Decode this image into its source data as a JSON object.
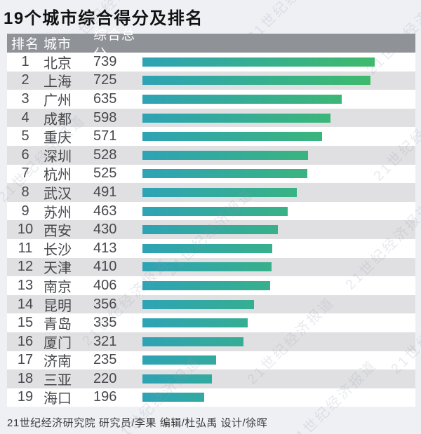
{
  "title": "19个城市综合得分及排名",
  "table": {
    "headers": {
      "rank": "排名",
      "city": "城市",
      "score": "综合总分"
    }
  },
  "chart_data": {
    "type": "bar",
    "orientation": "horizontal",
    "title": "19个城市综合得分及排名",
    "categories": [
      "北京",
      "上海",
      "广州",
      "成都",
      "重庆",
      "深圳",
      "杭州",
      "武汉",
      "苏州",
      "西安",
      "长沙",
      "天津",
      "南京",
      "昆明",
      "青岛",
      "厦门",
      "济南",
      "三亚",
      "海口"
    ],
    "ranks": [
      1,
      2,
      3,
      4,
      5,
      6,
      7,
      8,
      9,
      10,
      11,
      12,
      13,
      14,
      15,
      16,
      17,
      18,
      19
    ],
    "values": [
      739,
      725,
      635,
      598,
      571,
      528,
      525,
      491,
      463,
      430,
      413,
      410,
      406,
      356,
      335,
      321,
      235,
      220,
      196
    ],
    "xlim": [
      0,
      739
    ],
    "grid": false,
    "legend": false,
    "bar_gradient": [
      "#2ea3b5",
      "#3fba6b"
    ]
  },
  "footer": {
    "text": "21世纪经济研究院 研究员/李果  编辑/杜弘禹  设计/徐晖"
  },
  "watermark": {
    "text": "21世纪经济报道"
  },
  "colors": {
    "background": "#eef0f4",
    "header_band": "#8f9296",
    "row_alt": "#e0e0e2",
    "row_text": "#47484c",
    "bar_start": "#2ea3b5",
    "bar_end": "#3fba6b"
  }
}
